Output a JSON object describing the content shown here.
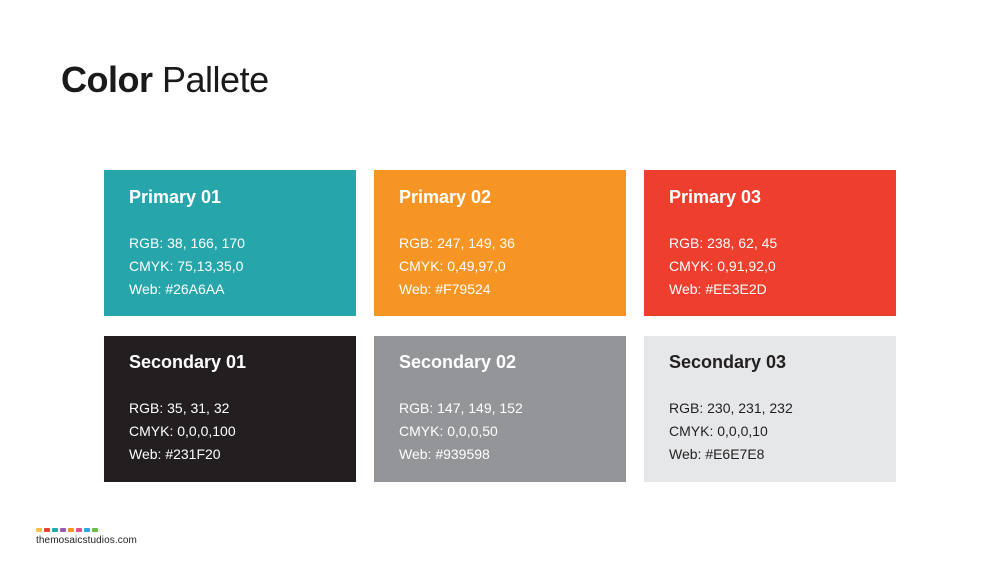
{
  "title": {
    "bold": "Color",
    "light": "Pallete"
  },
  "swatches": [
    {
      "name": "Primary 01",
      "rgb": "RGB: 38, 166, 170",
      "cmyk": "CMYK: 75,13,35,0",
      "web": "Web: #26A6AA",
      "color": "#26A6AA",
      "text_color": "light"
    },
    {
      "name": "Primary 02",
      "rgb": "RGB: 247, 149, 36",
      "cmyk": "CMYK: 0,49,97,0",
      "web": "Web: #F79524",
      "color": "#F79524",
      "text_color": "light"
    },
    {
      "name": "Primary 03",
      "rgb": "RGB: 238, 62, 45",
      "cmyk": "CMYK: 0,91,92,0",
      "web": "Web: #EE3E2D",
      "color": "#EE3E2D",
      "text_color": "light"
    },
    {
      "name": "Secondary 01",
      "rgb": "RGB: 35, 31, 32",
      "cmyk": "CMYK: 0,0,0,100",
      "web": "Web: #231F20",
      "color": "#231F20",
      "text_color": "light"
    },
    {
      "name": "Secondary 02",
      "rgb": "RGB: 147, 149, 152",
      "cmyk": "CMYK: 0,0,0,50",
      "web": "Web: #939598",
      "color": "#939598",
      "text_color": "light"
    },
    {
      "name": "Secondary 03",
      "rgb": "RGB: 230, 231, 232",
      "cmyk": "CMYK: 0,0,0,10",
      "web": "Web: #E6E7E8",
      "color": "#E6E7E8",
      "text_color": "dark"
    }
  ],
  "brand": {
    "text": "themosaicstudios.com",
    "dot_colors": [
      "#F6C343",
      "#EE3E2D",
      "#26A6AA",
      "#9B59B6",
      "#F79524",
      "#E84A8A",
      "#3AA0E0",
      "#6BBE45"
    ]
  }
}
